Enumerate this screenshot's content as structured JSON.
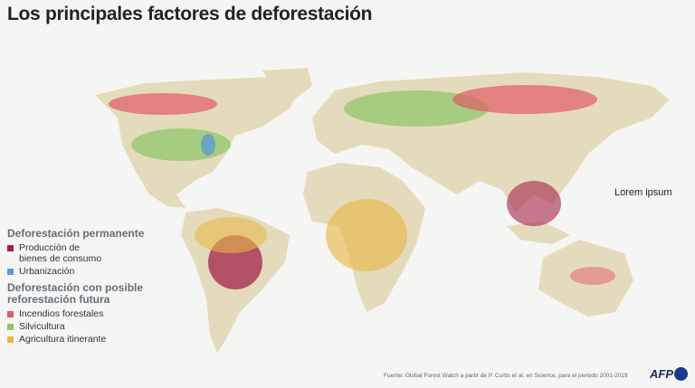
{
  "title": "Los principales factores de deforestación",
  "legend": {
    "groups": [
      {
        "title": "Deforestación permanente",
        "items": [
          {
            "label": "Producción de bienes de consumo",
            "color": "#a3234a"
          },
          {
            "label": "Urbanización",
            "color": "#5b9bd5"
          }
        ]
      },
      {
        "title": "Deforestación con posible reforestación futura",
        "items": [
          {
            "label": "Incendios forestales",
            "color": "#e15b64"
          },
          {
            "label": "Silvicultura",
            "color": "#8cc665"
          },
          {
            "label": "Agricultura itinerante",
            "color": "#e8b84a"
          }
        ]
      }
    ]
  },
  "annotation": "Lorem ipsum",
  "source": "Fuente: Global Forest Watch a partir de P. Curtis et al. en Science, para el periodo 2001-2019",
  "logo": "AFP"
}
